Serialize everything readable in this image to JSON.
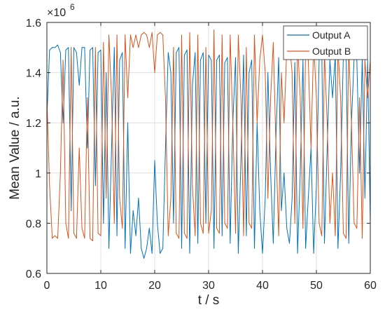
{
  "chart_data": {
    "type": "line",
    "title": "",
    "xlabel": "t / s",
    "ylabel": "Mean Value / a.u.",
    "y_exponent_label": "×10",
    "y_exponent_power": "6",
    "xlim": [
      0,
      60
    ],
    "ylim": [
      0.6,
      1.6
    ],
    "x_ticks": [
      0,
      10,
      20,
      30,
      40,
      50,
      60
    ],
    "x_tick_labels": [
      "0",
      "10",
      "20",
      "30",
      "40",
      "50",
      "60"
    ],
    "y_ticks": [
      0.6,
      0.8,
      1.0,
      1.2,
      1.4,
      1.6
    ],
    "y_tick_labels": [
      "0.6",
      "0.8",
      "1",
      "1.2",
      "1.4",
      "1.6"
    ],
    "grid": true,
    "legend_position": "top-right",
    "colors": {
      "Output A": "#0072BD",
      "Output B": "#D95319"
    },
    "series": [
      {
        "name": "Output A",
        "x": [
          0,
          0.5,
          1,
          1.5,
          2,
          2.5,
          3,
          3.5,
          4,
          4.5,
          5,
          5.5,
          6,
          6.5,
          7,
          7.5,
          8,
          8.5,
          9,
          9.5,
          10,
          10.5,
          11,
          11.5,
          12,
          12.5,
          13,
          13.5,
          14,
          14.5,
          15,
          15.5,
          16,
          16.5,
          17,
          17.5,
          18,
          18.5,
          19,
          19.5,
          20,
          20.5,
          21,
          21.5,
          22,
          22.5,
          23,
          23.5,
          24,
          24.5,
          25,
          25.5,
          26,
          26.5,
          27,
          27.5,
          28,
          28.5,
          29,
          29.5,
          30,
          30.5,
          31,
          31.5,
          32,
          32.5,
          33,
          33.5,
          34,
          34.5,
          35,
          35.5,
          36,
          36.5,
          37,
          37.5,
          38,
          38.5,
          39,
          39.5,
          40,
          40.5,
          41,
          41.5,
          42,
          42.5,
          43,
          43.5,
          44,
          44.5,
          45,
          45.5,
          46,
          46.5,
          47,
          47.5,
          48,
          48.5,
          49,
          49.5,
          50,
          50.5,
          51,
          51.5,
          52,
          52.5,
          53,
          53.5,
          54,
          54.5,
          55,
          55.5,
          56,
          56.5,
          57,
          57.5,
          58,
          58.5,
          59,
          59.5,
          60
        ],
        "values": [
          1.22,
          1.49,
          1.5,
          1.5,
          1.51,
          1.48,
          1.2,
          1.49,
          1.5,
          0.85,
          1.5,
          1.48,
          1.35,
          1.5,
          1.5,
          1.1,
          1.49,
          1.5,
          0.95,
          1.48,
          1.49,
          0.8,
          1.4,
          0.7,
          1.1,
          1.5,
          0.75,
          1.45,
          1.48,
          0.7,
          1.2,
          0.68,
          0.85,
          0.75,
          0.9,
          0.7,
          0.66,
          0.7,
          0.78,
          0.68,
          1.05,
          0.8,
          0.68,
          0.7,
          1.1,
          1.48,
          1.4,
          0.8,
          1.48,
          1.5,
          0.7,
          1.47,
          1.49,
          0.68,
          1.35,
          1.48,
          0.72,
          1.45,
          1.48,
          0.8,
          1.47,
          1.45,
          0.7,
          1.45,
          1.47,
          0.75,
          1.44,
          1.46,
          0.72,
          1.2,
          1.46,
          0.68,
          1.05,
          1.47,
          0.75,
          1.4,
          1.45,
          0.7,
          1.2,
          0.85,
          0.68,
          0.9,
          1.4,
          1.0,
          0.72,
          1.15,
          1.46,
          0.85,
          1.0,
          0.78,
          0.72,
          0.9,
          1.44,
          0.68,
          1.0,
          1.45,
          0.7,
          0.9,
          1.1,
          0.68,
          0.95,
          1.45,
          1.48,
          0.72,
          1.1,
          1.45,
          1.3,
          1.47,
          0.7,
          1.0,
          1.47,
          1.48,
          0.72,
          1.2,
          1.46,
          1.45,
          1.0,
          1.46,
          0.9,
          1.45,
          0.8
        ]
      },
      {
        "name": "Output B",
        "x": [
          0,
          0.5,
          1,
          1.5,
          2,
          2.5,
          3,
          3.5,
          4,
          4.5,
          5,
          5.5,
          6,
          6.5,
          7,
          7.5,
          8,
          8.5,
          9,
          9.5,
          10,
          10.5,
          11,
          11.5,
          12,
          12.5,
          13,
          13.5,
          14,
          14.5,
          15,
          15.5,
          16,
          16.5,
          17,
          17.5,
          18,
          18.5,
          19,
          19.5,
          20,
          20.5,
          21,
          21.5,
          22,
          22.5,
          23,
          23.5,
          24,
          24.5,
          25,
          25.5,
          26,
          26.5,
          27,
          27.5,
          28,
          28.5,
          29,
          29.5,
          30,
          30.5,
          31,
          31.5,
          32,
          32.5,
          33,
          33.5,
          34,
          34.5,
          35,
          35.5,
          36,
          36.5,
          37,
          37.5,
          38,
          38.5,
          39,
          39.5,
          40,
          40.5,
          41,
          41.5,
          42,
          42.5,
          43,
          43.5,
          44,
          44.5,
          45,
          45.5,
          46,
          46.5,
          47,
          47.5,
          48,
          48.5,
          49,
          49.5,
          50,
          50.5,
          51,
          51.5,
          52,
          52.5,
          53,
          53.5,
          54,
          54.5,
          55,
          55.5,
          56,
          56.5,
          57,
          57.5,
          58,
          58.5,
          59,
          59.5,
          60
        ],
        "values": [
          1.3,
          0.95,
          0.74,
          0.75,
          0.74,
          1.0,
          1.45,
          0.8,
          0.74,
          1.5,
          0.76,
          0.74,
          1.1,
          0.78,
          0.74,
          1.3,
          0.74,
          0.73,
          1.5,
          0.76,
          0.75,
          1.52,
          0.9,
          1.55,
          1.3,
          0.8,
          1.55,
          0.9,
          0.78,
          1.55,
          1.3,
          1.55,
          1.5,
          1.55,
          1.5,
          1.55,
          1.56,
          1.55,
          1.5,
          1.56,
          1.4,
          1.55,
          1.56,
          1.55,
          1.3,
          0.75,
          0.9,
          1.5,
          0.76,
          0.74,
          1.55,
          0.76,
          0.74,
          1.56,
          0.95,
          0.75,
          1.55,
          0.8,
          0.76,
          1.5,
          0.76,
          0.85,
          1.57,
          0.78,
          0.76,
          1.55,
          0.8,
          0.78,
          1.55,
          1.2,
          0.76,
          1.55,
          1.3,
          0.75,
          1.5,
          0.8,
          0.78,
          1.55,
          1.2,
          1.45,
          1.55,
          1.4,
          0.9,
          1.3,
          1.52,
          1.1,
          0.75,
          1.4,
          1.2,
          1.5,
          1.52,
          1.4,
          0.8,
          1.52,
          1.3,
          0.78,
          1.5,
          1.45,
          1.1,
          1.52,
          1.3,
          0.8,
          0.75,
          1.48,
          1.2,
          0.8,
          1.0,
          0.75,
          1.5,
          1.3,
          0.76,
          0.74,
          1.5,
          1.2,
          0.8,
          0.78,
          1.3,
          0.74,
          1.45,
          1.3,
          1.45
        ]
      }
    ]
  }
}
